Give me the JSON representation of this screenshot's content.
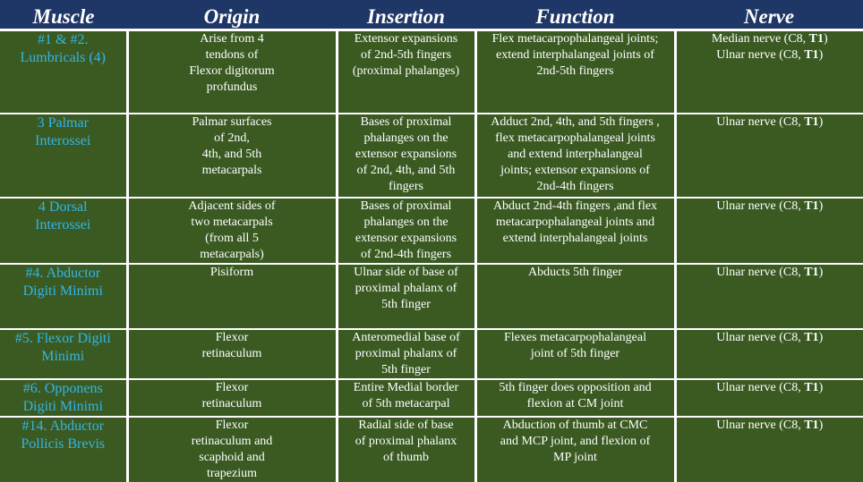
{
  "headers": [
    "Muscle",
    "Origin",
    "Insertion",
    "Function",
    "Nerve"
  ],
  "rows": [
    {
      "muscle": [
        "#1 & #2.",
        "Lumbricals (4)"
      ],
      "origin": [
        "Arise from 4",
        "tendons of",
        "Flexor digitorum",
        "profundus"
      ],
      "insertion": [
        "Extensor expansions",
        "of 2nd-5th fingers",
        "(proximal phalanges)"
      ],
      "function": [
        "Flex metacarpophalangeal joints;",
        "extend interphalangeal joints of",
        "2nd-5th fingers"
      ],
      "nerve": [
        [
          "Median nerve (C8, ",
          "T1",
          ")"
        ],
        [
          "Ulnar nerve (C8, ",
          "T1",
          ")"
        ]
      ]
    },
    {
      "muscle": [
        "3 Palmar",
        "Interossei"
      ],
      "origin": [
        "Palmar surfaces",
        "of 2nd,",
        "4th, and 5th",
        "metacarpals"
      ],
      "insertion": [
        "Bases of proximal",
        "phalanges on the",
        "extensor expansions",
        "of 2nd, 4th, and 5th",
        "fingers"
      ],
      "function": [
        "Adduct 2nd, 4th, and 5th fingers ,",
        "flex metacarpophalangeal joints",
        "and extend interphalangeal",
        "joints; extensor expansions of",
        "2nd-4th fingers"
      ],
      "nerve": [
        [
          "Ulnar nerve (C8, ",
          "T1",
          ")"
        ]
      ]
    },
    {
      "muscle": [
        "4 Dorsal",
        "Interossei"
      ],
      "origin": [
        "Adjacent sides of",
        "two metacarpals",
        "(from all 5",
        "metacarpals)"
      ],
      "insertion": [
        "Bases of proximal",
        "phalanges on the",
        "extensor expansions",
        "of 2nd-4th fingers"
      ],
      "function": [
        "Abduct 2nd-4th fingers ,and flex",
        "metacarpophalangeal joints and",
        "extend interphalangeal joints"
      ],
      "nerve": [
        [
          "Ulnar nerve (C8, ",
          "T1",
          ")"
        ]
      ]
    },
    {
      "muscle": [
        "#4. Abductor",
        "Digiti Minimi"
      ],
      "origin": [
        "Pisiform"
      ],
      "insertion": [
        "Ulnar side of base of",
        "proximal phalanx of",
        "5th finger"
      ],
      "function": [
        "Abducts 5th finger"
      ],
      "nerve": [
        [
          "Ulnar nerve (C8, ",
          "T1",
          ")"
        ]
      ]
    },
    {
      "muscle": [
        "#5. Flexor Digiti",
        "Minimi"
      ],
      "origin": [
        "Flexor",
        "retinaculum"
      ],
      "insertion": [
        "Anteromedial base of",
        "proximal phalanx of",
        "5th finger"
      ],
      "function": [
        "Flexes metacarpophalangeal",
        "joint of 5th finger"
      ],
      "nerve": [
        [
          "Ulnar nerve (C8, ",
          "T1",
          ")"
        ]
      ]
    },
    {
      "muscle": [
        "#6. Opponens",
        "Digiti Minimi"
      ],
      "origin": [
        "Flexor",
        "retinaculum"
      ],
      "insertion": [
        "Entire Medial border",
        "of 5th metacarpal"
      ],
      "function": [
        "5th finger does opposition and",
        "flexion at CM joint"
      ],
      "nerve": [
        [
          "Ulnar nerve (C8, ",
          "T1",
          ")"
        ]
      ]
    },
    {
      "muscle": [
        "#14. Abductor",
        "Pollicis Brevis"
      ],
      "origin": [
        "Flexor",
        "retinaculum and",
        "scaphoid and",
        "trapezium"
      ],
      "insertion": [
        "Radial side of base",
        "of proximal phalanx",
        "of thumb"
      ],
      "function": [
        "Abduction of thumb at CMC",
        "and MCP joint, and flexion of",
        "MP joint"
      ],
      "nerve": [
        [
          "Ulnar nerve (C8, ",
          "T1",
          ")"
        ]
      ]
    }
  ]
}
